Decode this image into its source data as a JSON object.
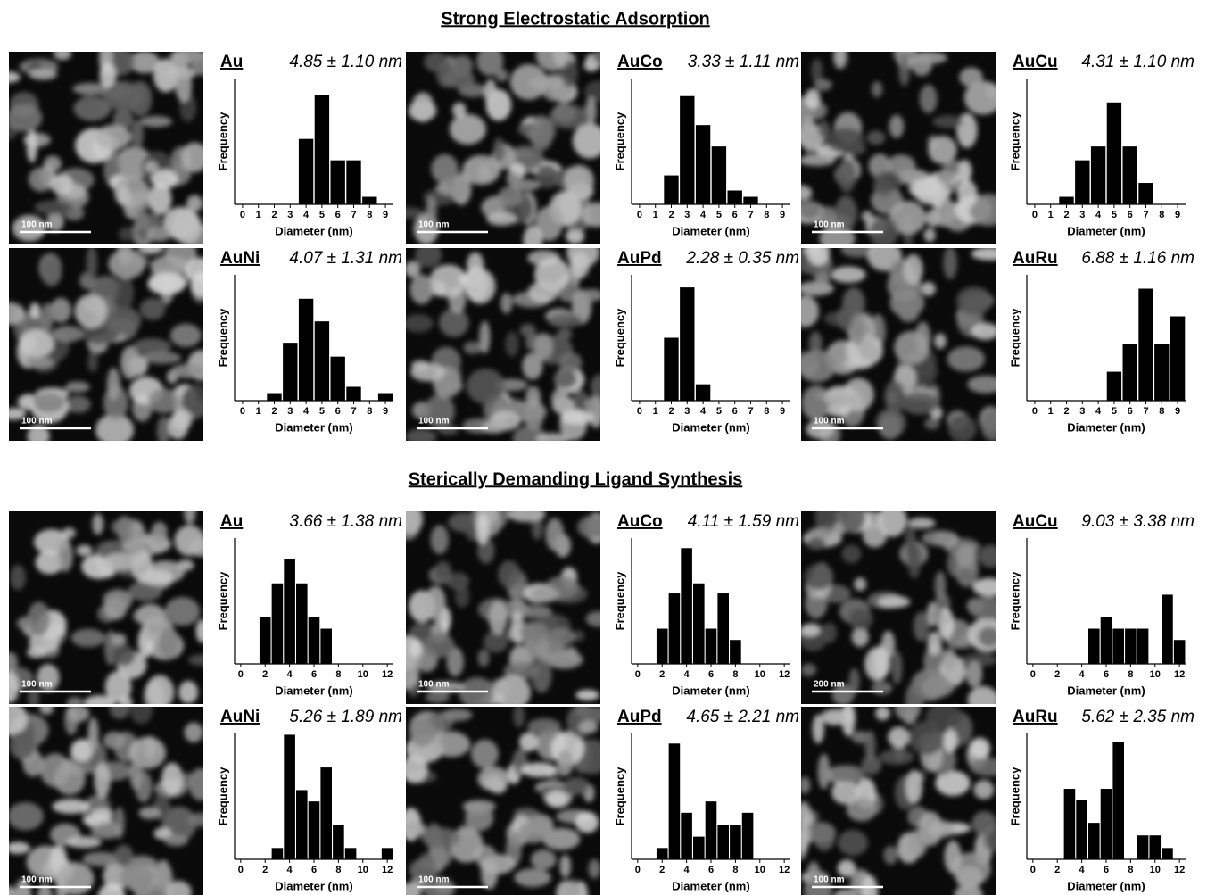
{
  "sections": [
    {
      "title": "Strong Electrostatic Adsorption"
    },
    {
      "title": "Sterically Demanding Ligand Synthesis"
    }
  ],
  "images": [
    {
      "scale_bar": "100 nm"
    },
    {
      "scale_bar": "100 nm"
    },
    {
      "scale_bar": "100 nm"
    },
    {
      "scale_bar": "100 nm"
    },
    {
      "scale_bar": "100 nm"
    },
    {
      "scale_bar": "100 nm"
    },
    {
      "scale_bar": "100 nm"
    },
    {
      "scale_bar": "100 nm"
    },
    {
      "scale_bar": "200 nm"
    },
    {
      "scale_bar": "100 nm"
    },
    {
      "scale_bar": "100 nm"
    },
    {
      "scale_bar": "100 nm"
    }
  ],
  "chart_data": [
    {
      "type": "bar",
      "title": "Au",
      "subtitle": "4.85 ± 1.10 nm",
      "xlabel": "Diameter (nm)",
      "ylabel": "Frequency",
      "x": [
        0,
        1,
        2,
        3,
        4,
        5,
        6,
        7,
        8,
        9
      ],
      "values": [
        0,
        0,
        0,
        0,
        52,
        87,
        35,
        35,
        6,
        0
      ],
      "color": "#000000",
      "xlim": [
        -0.5,
        9.5
      ],
      "xticks": [
        0,
        1,
        2,
        3,
        4,
        5,
        6,
        7,
        8,
        9
      ],
      "ylim": [
        0,
        100
      ]
    },
    {
      "type": "bar",
      "title": "AuCo",
      "subtitle": "3.33 ± 1.11 nm",
      "xlabel": "Diameter (nm)",
      "ylabel": "Frequency",
      "x": [
        0,
        1,
        2,
        3,
        4,
        5,
        6,
        7,
        8,
        9
      ],
      "values": [
        0,
        0,
        23,
        86,
        63,
        46,
        11,
        6,
        0,
        0
      ],
      "color": "#000000",
      "xlim": [
        -0.5,
        9.5
      ],
      "xticks": [
        0,
        1,
        2,
        3,
        4,
        5,
        6,
        7,
        8,
        9
      ],
      "ylim": [
        0,
        100
      ]
    },
    {
      "type": "bar",
      "title": "AuCu",
      "subtitle": "4.31 ± 1.10 nm",
      "xlabel": "Diameter (nm)",
      "ylabel": "Frequency",
      "x": [
        0,
        1,
        2,
        3,
        4,
        5,
        6,
        7,
        8,
        9
      ],
      "values": [
        0,
        0,
        6,
        35,
        46,
        81,
        46,
        17,
        0,
        0
      ],
      "color": "#000000",
      "xlim": [
        -0.5,
        9.5
      ],
      "xticks": [
        0,
        1,
        2,
        3,
        4,
        5,
        6,
        7,
        8,
        9
      ],
      "ylim": [
        0,
        100
      ]
    },
    {
      "type": "bar",
      "title": "AuNi",
      "subtitle": "4.07 ± 1.31 nm",
      "xlabel": "Diameter (nm)",
      "ylabel": "Frequency",
      "x": [
        0,
        1,
        2,
        3,
        4,
        5,
        6,
        7,
        8,
        9
      ],
      "values": [
        0,
        0,
        6,
        46,
        81,
        63,
        35,
        11,
        0,
        6
      ],
      "color": "#000000",
      "xlim": [
        -0.5,
        9.5
      ],
      "xticks": [
        0,
        1,
        2,
        3,
        4,
        5,
        6,
        7,
        8,
        9
      ],
      "ylim": [
        0,
        100
      ]
    },
    {
      "type": "bar",
      "title": "AuPd",
      "subtitle": "2.28 ± 0.35 nm",
      "xlabel": "Diameter (nm)",
      "ylabel": "Frequency",
      "x": [
        0,
        1,
        2,
        3,
        4,
        5,
        6,
        7,
        8,
        9
      ],
      "values": [
        0,
        0,
        50,
        90,
        13,
        0,
        0,
        0,
        0,
        0
      ],
      "color": "#000000",
      "xlim": [
        -0.5,
        9.5
      ],
      "xticks": [
        0,
        1,
        2,
        3,
        4,
        5,
        6,
        7,
        8,
        9
      ],
      "ylim": [
        0,
        100
      ]
    },
    {
      "type": "bar",
      "title": "AuRu",
      "subtitle": "6.88 ± 1.16 nm",
      "xlabel": "Diameter (nm)",
      "ylabel": "Frequency",
      "x": [
        0,
        1,
        2,
        3,
        4,
        5,
        6,
        7,
        8,
        9
      ],
      "values": [
        0,
        0,
        0,
        0,
        0,
        23,
        45,
        89,
        45,
        67
      ],
      "color": "#000000",
      "xlim": [
        -0.5,
        9.5
      ],
      "xticks": [
        0,
        1,
        2,
        3,
        4,
        5,
        6,
        7,
        8,
        9
      ],
      "ylim": [
        0,
        100
      ]
    },
    {
      "type": "bar",
      "title": "Au",
      "subtitle": "3.66 ± 1.38 nm",
      "xlabel": "Diameter (nm)",
      "ylabel": "Frequency",
      "x": [
        0,
        1,
        2,
        3,
        4,
        5,
        6,
        7,
        8,
        9,
        10,
        11,
        12
      ],
      "values": [
        0,
        0,
        37,
        64,
        83,
        64,
        37,
        28,
        0,
        0,
        0,
        0,
        0
      ],
      "color": "#000000",
      "xlim": [
        -0.5,
        12.5
      ],
      "xticks": [
        0,
        2,
        4,
        6,
        8,
        10,
        12
      ],
      "ylim": [
        0,
        100
      ]
    },
    {
      "type": "bar",
      "title": "AuCo",
      "subtitle": "4.11 ± 1.59 nm",
      "xlabel": "Diameter (nm)",
      "ylabel": "Frequency",
      "x": [
        0,
        1,
        2,
        3,
        4,
        5,
        6,
        7,
        8,
        9,
        10,
        11,
        12
      ],
      "values": [
        0,
        0,
        28,
        56,
        92,
        64,
        28,
        56,
        19,
        0,
        0,
        0,
        0
      ],
      "color": "#000000",
      "xlim": [
        -0.5,
        12.5
      ],
      "xticks": [
        0,
        2,
        4,
        6,
        8,
        10,
        12
      ],
      "ylim": [
        0,
        100
      ]
    },
    {
      "type": "bar",
      "title": "AuCu",
      "subtitle": "9.03 ± 3.38 nm",
      "xlabel": "Diameter (nm)",
      "ylabel": "Frequency",
      "x": [
        0,
        1,
        2,
        3,
        4,
        5,
        6,
        7,
        8,
        9,
        10,
        11,
        12
      ],
      "values": [
        0,
        0,
        0,
        0,
        0,
        28,
        37,
        28,
        28,
        28,
        0,
        55,
        19
      ],
      "color": "#000000",
      "xlim": [
        -0.5,
        12.5
      ],
      "xticks": [
        0,
        2,
        4,
        6,
        8,
        10,
        12
      ],
      "ylim": [
        0,
        100
      ]
    },
    {
      "type": "bar",
      "title": "AuNi",
      "subtitle": "5.26 ± 1.89 nm",
      "xlabel": "Diameter (nm)",
      "ylabel": "Frequency",
      "x": [
        0,
        1,
        2,
        3,
        4,
        5,
        6,
        7,
        8,
        9,
        10,
        11,
        12
      ],
      "values": [
        0,
        0,
        0,
        9,
        99,
        55,
        46,
        73,
        27,
        9,
        0,
        0,
        9
      ],
      "color": "#000000",
      "xlim": [
        -0.5,
        12.5
      ],
      "xticks": [
        0,
        2,
        4,
        6,
        8,
        10,
        12
      ],
      "ylim": [
        0,
        100
      ]
    },
    {
      "type": "bar",
      "title": "AuPd",
      "subtitle": "4.65 ± 2.21 nm",
      "xlabel": "Diameter (nm)",
      "ylabel": "Frequency",
      "x": [
        0,
        1,
        2,
        3,
        4,
        5,
        6,
        7,
        8,
        9,
        10,
        11,
        12
      ],
      "values": [
        0,
        0,
        9,
        92,
        37,
        18,
        46,
        27,
        27,
        37,
        0,
        0,
        0
      ],
      "color": "#000000",
      "xlim": [
        -0.5,
        12.5
      ],
      "xticks": [
        0,
        2,
        4,
        6,
        8,
        10,
        12
      ],
      "ylim": [
        0,
        100
      ]
    },
    {
      "type": "bar",
      "title": "AuRu",
      "subtitle": "5.62 ± 2.35 nm",
      "xlabel": "Diameter (nm)",
      "ylabel": "Frequency",
      "x": [
        0,
        1,
        2,
        3,
        4,
        5,
        6,
        7,
        8,
        9,
        10,
        11,
        12
      ],
      "values": [
        0,
        0,
        0,
        56,
        47,
        29,
        56,
        93,
        0,
        19,
        19,
        9,
        0
      ],
      "color": "#000000",
      "xlim": [
        -0.5,
        12.5
      ],
      "xticks": [
        0,
        2,
        4,
        6,
        8,
        10,
        12
      ],
      "ylim": [
        0,
        100
      ]
    }
  ]
}
